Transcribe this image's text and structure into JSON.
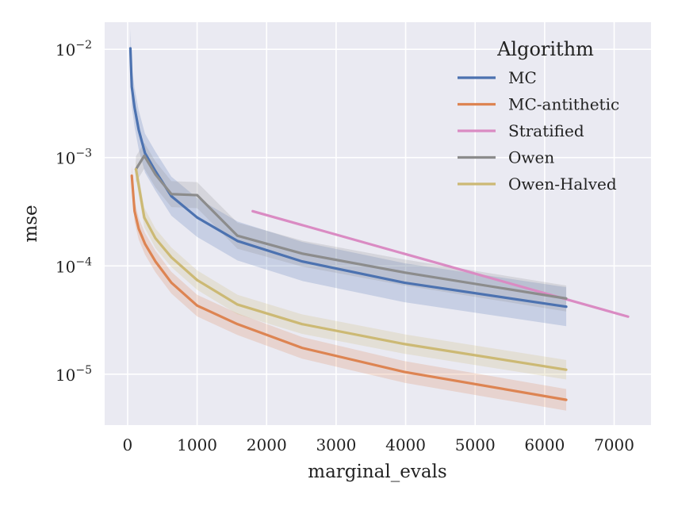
{
  "chart_data": {
    "type": "line",
    "xlabel": "marginal_evals",
    "ylabel": "mse",
    "xlim": [
      -330,
      7530
    ],
    "ylim_log10": [
      -5.47,
      -1.75
    ],
    "y_scale": "log",
    "grid": true,
    "x_ticks": [
      0,
      1000,
      2000,
      3000,
      4000,
      5000,
      6000,
      7000
    ],
    "x_tick_labels": [
      "0",
      "1000",
      "2000",
      "3000",
      "4000",
      "5000",
      "6000",
      "7000"
    ],
    "y_ticks_log10": [
      -5,
      -4,
      -3,
      -2
    ],
    "y_tick_labels": [
      {
        "base": "10",
        "exp": "−5"
      },
      {
        "base": "10",
        "exp": "−4"
      },
      {
        "base": "10",
        "exp": "−3"
      },
      {
        "base": "10",
        "exp": "−2"
      }
    ],
    "legend": {
      "title": "Algorithm",
      "position": "top-right"
    },
    "series": [
      {
        "name": "MC",
        "color": "#4c72b0",
        "x": [
          40,
          60,
          100,
          160,
          250,
          400,
          630,
          1000,
          1580,
          2510,
          3980,
          6310
        ],
        "y": [
          0.0102,
          0.0045,
          0.0029,
          0.0018,
          0.0011,
          0.00075,
          0.00044,
          0.00028,
          0.00017,
          0.00011,
          7e-05,
          4.2e-05
        ],
        "band": 0.18
      },
      {
        "name": "MC-antithetic",
        "color": "#dd8452",
        "x": [
          60,
          100,
          160,
          250,
          400,
          630,
          1000,
          1580,
          2510,
          3980,
          6310
        ],
        "y": [
          0.00068,
          0.00032,
          0.00022,
          0.00016,
          0.00011,
          7e-05,
          4.3e-05,
          2.9e-05,
          1.75e-05,
          1.05e-05,
          5.8e-06
        ],
        "band": 0.1
      },
      {
        "name": "Stratified",
        "color": "#da8bc3",
        "x": [
          1800,
          7200
        ],
        "y": [
          0.00032,
          3.4e-05
        ],
        "band": 0
      },
      {
        "name": "Owen",
        "color": "#8c8c8c",
        "x": [
          120,
          240,
          400,
          630,
          1000,
          1580,
          2510,
          3980,
          6310
        ],
        "y": [
          0.00078,
          0.00104,
          0.0007,
          0.00046,
          0.00045,
          0.00019,
          0.00013,
          8.7e-05,
          5e-05
        ],
        "band": 0.12
      },
      {
        "name": "Owen-Halved",
        "color": "#ccb974",
        "x": [
          120,
          240,
          400,
          630,
          1000,
          1580,
          2510,
          3980,
          6310
        ],
        "y": [
          0.00078,
          0.00028,
          0.00018,
          0.00012,
          7.4e-05,
          4.4e-05,
          2.9e-05,
          1.9e-05,
          1.1e-05
        ],
        "band": 0.09
      }
    ]
  }
}
